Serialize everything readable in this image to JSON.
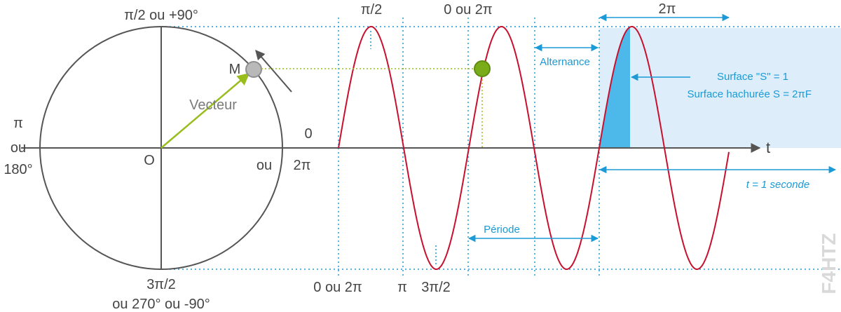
{
  "circle": {
    "top_label": "π/2 ou +90°",
    "left_label_line1": "π",
    "left_label_line2": "ou",
    "left_label_line3": "180°",
    "center_label": "O",
    "right_label_ou": "ou",
    "right_label_2pi": "2π",
    "right_label_zero": "0",
    "bottom_label_line1": "3π/2",
    "bottom_label_line2": "ou 270° ou -90°",
    "point_label": "M",
    "vector_label": "Vecteur"
  },
  "wave": {
    "peak_label_1": "π/2",
    "peak_label_2": "0 ou 2π",
    "bottom_label_0": "0 ou 2π",
    "bottom_label_pi": "π",
    "bottom_label_3pi2": "3π/2",
    "axis_label": "t",
    "alternance_label": "Alternance",
    "periode_label": "Période",
    "twopi_label": "2π",
    "surface_label_1": "Surface \"S\" = 1",
    "surface_label_2": "Surface hachurée S = 2πF",
    "time_label": "t = 1 seconde"
  },
  "watermark": "F4HTZ",
  "colors": {
    "sine": "#c8102e",
    "accent_blue": "#1b9ad6",
    "vector_green": "#9abd1e",
    "point_green": "#7aac1a",
    "shade_light": "#ddeefa",
    "shade_dark": "#4db8ea",
    "dark_line": "#555555"
  }
}
